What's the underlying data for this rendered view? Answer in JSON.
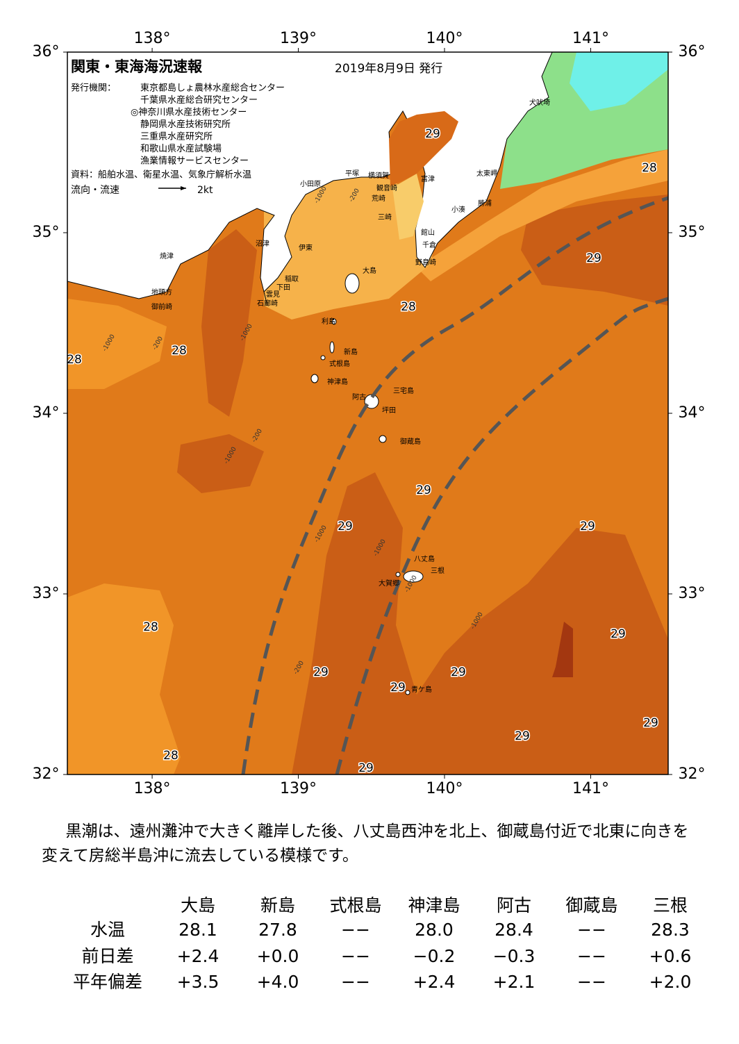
{
  "map": {
    "title": "関東・東海海況速報",
    "date": "2019年8月9日 発行",
    "issuer_label": "発行機関：",
    "issuers": [
      "東京都島しょ農林水産総合センター",
      "千葉県水産総合研究センター",
      "◎神奈川県水産技術センター",
      "静岡県水産技術研究所",
      "三重県水産研究所",
      "和歌山県水産試験場",
      "漁業情報サービスセンター"
    ],
    "source": "資料：船舶水温、衛星水温、気象庁解析水温",
    "flow_legend": "流向・流速",
    "flow_scale": "2kt",
    "lonlim": [
      137.42,
      141.53
    ],
    "latlim": [
      32,
      36
    ],
    "lon_ticks": [
      {
        "value": 138,
        "label": "138°"
      },
      {
        "value": 139,
        "label": "139°"
      },
      {
        "value": 140,
        "label": "140°"
      },
      {
        "value": 141,
        "label": "141°"
      }
    ],
    "lat_ticks": [
      {
        "value": 32,
        "label": "32°"
      },
      {
        "value": 33,
        "label": "33°"
      },
      {
        "value": 34,
        "label": "34°"
      },
      {
        "value": 35,
        "label": "35°"
      },
      {
        "value": 36,
        "label": "36°"
      }
    ],
    "place_names": [
      "犬吠埼",
      "太東岬",
      "富津",
      "横須賀",
      "平塚",
      "小田原",
      "観音崎",
      "荒崎",
      "三崎",
      "小湊",
      "勝浦",
      "館山",
      "千倉",
      "野島崎",
      "沼津",
      "伊東",
      "焼津",
      "大島",
      "稲取",
      "下田",
      "雲見",
      "石廊崎",
      "地頭方",
      "御前崎",
      "利島",
      "新島",
      "式根島",
      "神津島",
      "三宅島",
      "阿古",
      "坪田",
      "御蔵島",
      "八丈島",
      "三根",
      "大賀郷",
      "青ケ島"
    ],
    "temperature_labels": [
      29,
      28,
      29,
      28,
      28,
      28,
      29,
      29,
      29,
      28,
      29,
      29,
      29,
      29,
      29,
      29,
      28,
      29
    ],
    "contour_labels": [
      "-1000",
      "-200",
      "-1000",
      "-200",
      "-1000",
      "-200",
      "-1000",
      "-1000",
      "-1000",
      "-1000",
      "-200",
      "-1000"
    ]
  },
  "summary": "黒潮は、遠州灘沖で大きく離岸した後、八丈島西沖を北上、御蔵島付近で北東に向きを変えて房総半島沖に流去している模様です。",
  "table": {
    "columns": [
      "大島",
      "新島",
      "式根島",
      "神津島",
      "阿古",
      "御蔵島",
      "三根"
    ],
    "rows": [
      {
        "label": "水温",
        "values": [
          "28.1",
          "27.8",
          "−−",
          "28.0",
          "28.4",
          "−−",
          "28.3"
        ]
      },
      {
        "label": "前日差",
        "values": [
          "+2.4",
          "+0.0",
          "−−",
          "−0.2",
          "−0.3",
          "−−",
          "+0.6"
        ]
      },
      {
        "label": "平年偏差",
        "values": [
          "+3.5",
          "+4.0",
          "−−",
          "+2.4",
          "+2.1",
          "−−",
          "+2.0"
        ]
      }
    ]
  }
}
